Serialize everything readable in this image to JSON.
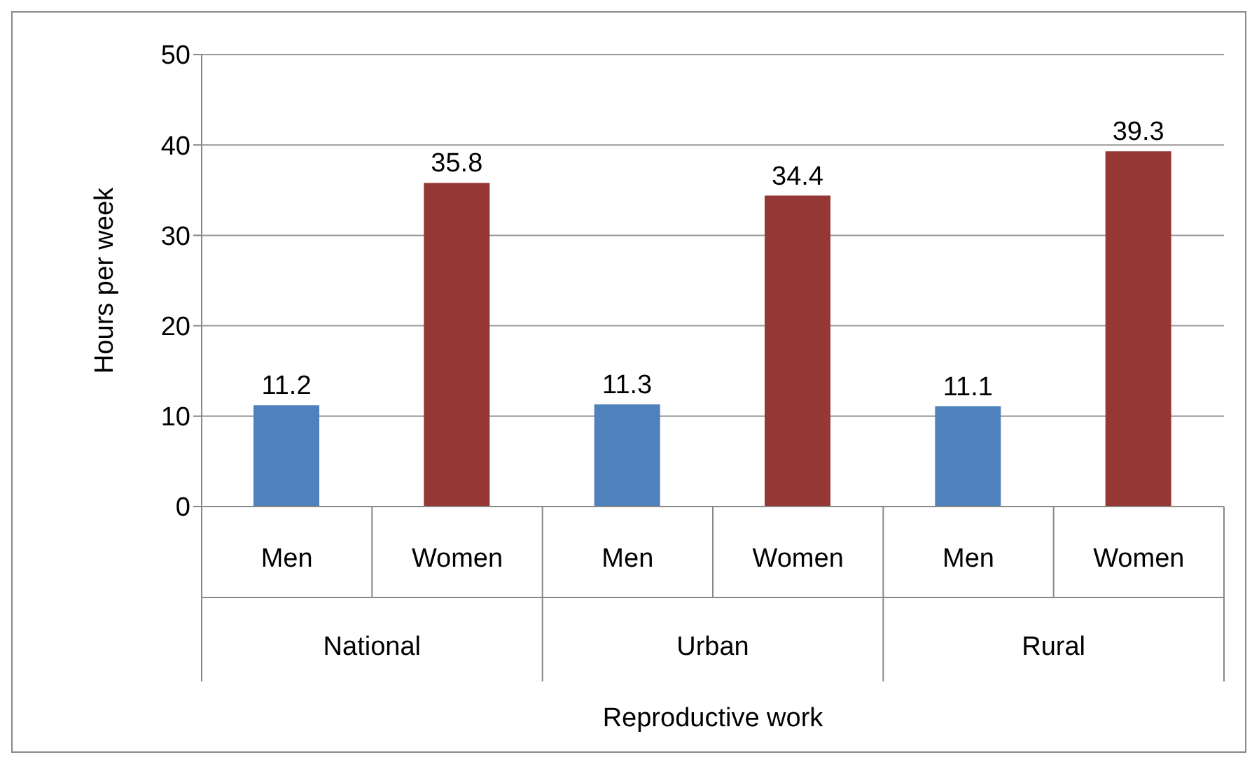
{
  "chart_data": {
    "type": "bar",
    "xlabel": "Reproductive work",
    "ylabel": "Hours per week",
    "categories": [
      "Men",
      "Women",
      "Men",
      "Women",
      "Men",
      "Women"
    ],
    "values": [
      11.2,
      35.8,
      11.3,
      34.4,
      11.1,
      39.3
    ],
    "colors": [
      "#4f81bd",
      "#953735",
      "#4f81bd",
      "#953735",
      "#4f81bd",
      "#953735"
    ],
    "annotations": [
      "National",
      "Urban",
      "Rural"
    ],
    "ylim": [
      0,
      50
    ],
    "yticks": [
      0,
      10,
      20,
      30,
      40,
      50
    ],
    "grid": "y",
    "data_labels": true,
    "legend": false
  }
}
